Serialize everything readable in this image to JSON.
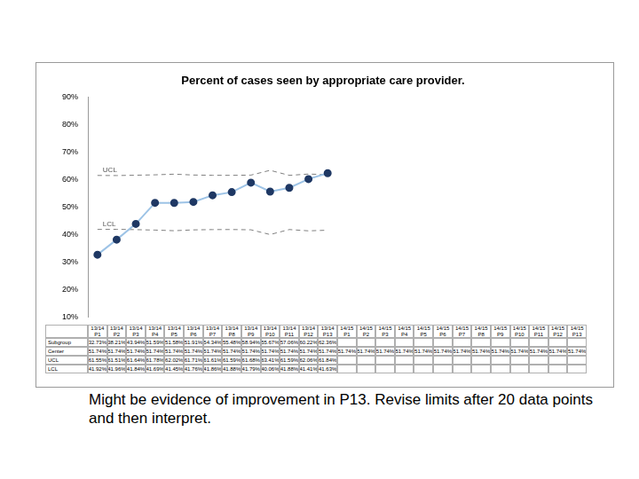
{
  "chart_data": {
    "type": "line",
    "title": "Percent of cases seen by appropriate care provider.",
    "annotations": [
      "Might be evidence of improvement in P13. Revise limits after 20 data points and then interpret."
    ],
    "categories": [
      "13/14 P1",
      "13/14 P2",
      "13/14 P3",
      "13/14 P4",
      "13/14 P5",
      "13/14 P6",
      "13/14 P7",
      "13/14 P8",
      "13/14 P9",
      "13/14 P10",
      "13/14 P11",
      "13/14 P12",
      "13/14 P13",
      "14/15 P1",
      "14/15 P2",
      "14/15 P3",
      "14/15 P4",
      "14/15 P5",
      "14/15 P6",
      "14/15 P7",
      "14/15 P8",
      "14/15 P9",
      "14/15 P10",
      "14/15 P11",
      "14/15 P12",
      "14/15 P13"
    ],
    "series": [
      {
        "name": "Subgroup",
        "color": "#9dc3e6",
        "marker": "circle",
        "line_style": "solid",
        "values": [
          32.73,
          38.21,
          43.94,
          51.59,
          51.58,
          51.91,
          54.34,
          55.48,
          58.94,
          55.67,
          57.06,
          60.22,
          62.36,
          null,
          null,
          null,
          null,
          null,
          null,
          null,
          null,
          null,
          null,
          null,
          null,
          null
        ],
        "value_labels": [
          "32.73%",
          "38.21%",
          "43.94%",
          "51.59%",
          "51.58%",
          "51.91%",
          "54.34%",
          "55.48%",
          "58.94%",
          "55.67%",
          "57.06%",
          "60.22%",
          "62.36%",
          null,
          null,
          null,
          null,
          null,
          null,
          null,
          null,
          null,
          null,
          null,
          null,
          null
        ]
      },
      {
        "name": "Center",
        "color": "#7f7f7f",
        "marker": "none",
        "line_style": "none",
        "values": [
          51.74,
          51.74,
          51.74,
          51.74,
          51.74,
          51.74,
          51.74,
          51.74,
          51.74,
          51.74,
          51.74,
          51.74,
          51.74,
          51.74,
          51.74,
          51.74,
          51.74,
          51.74,
          51.74,
          51.74,
          51.74,
          51.74,
          51.74,
          51.74,
          51.74,
          51.74
        ],
        "value_labels": [
          "51.74%",
          "51.74%",
          "51.74%",
          "51.74%",
          "51.74%",
          "51.74%",
          "51.74%",
          "51.74%",
          "51.74%",
          "51.74%",
          "51.74%",
          "51.74%",
          "51.74%",
          "51.74%",
          "51.74%",
          "51.74%",
          "51.74%",
          "51.74%",
          "51.74%",
          "51.74%",
          "51.74%",
          "51.74%",
          "51.74%",
          "51.74%",
          "51.74%",
          "51.74%"
        ]
      },
      {
        "name": "UCL",
        "color": "#7f7f7f",
        "marker": "none",
        "line_style": "dashed",
        "values": [
          61.55,
          61.51,
          61.64,
          61.78,
          62.02,
          61.71,
          61.61,
          61.59,
          61.68,
          63.41,
          61.59,
          62.06,
          61.84,
          null,
          null,
          null,
          null,
          null,
          null,
          null,
          null,
          null,
          null,
          null,
          null,
          null
        ],
        "value_labels": [
          "61.55%",
          "61.51%",
          "61.64%",
          "61.78%",
          "62.02%",
          "61.71%",
          "61.61%",
          "61.59%",
          "61.68%",
          "63.41%",
          "61.59%",
          "62.06%",
          "61.84%",
          null,
          null,
          null,
          null,
          null,
          null,
          null,
          null,
          null,
          null,
          null,
          null,
          null
        ]
      },
      {
        "name": "LCL",
        "color": "#7f7f7f",
        "marker": "none",
        "line_style": "dashed",
        "values": [
          41.92,
          41.96,
          41.84,
          41.69,
          41.45,
          41.76,
          41.86,
          41.88,
          41.79,
          40.06,
          41.88,
          41.41,
          41.63,
          null,
          null,
          null,
          null,
          null,
          null,
          null,
          null,
          null,
          null,
          null,
          null,
          null
        ],
        "value_labels": [
          "41.92%",
          "41.96%",
          "41.84%",
          "41.69%",
          "41.45%",
          "41.76%",
          "41.86%",
          "41.88%",
          "41.79%",
          "40.06%",
          "41.88%",
          "41.41%",
          "41.63%",
          null,
          null,
          null,
          null,
          null,
          null,
          null,
          null,
          null,
          null,
          null,
          null,
          null
        ]
      }
    ],
    "ylim": [
      10,
      90
    ],
    "yticks": [
      {
        "value": 10,
        "label": "10%"
      },
      {
        "value": 20,
        "label": "20%"
      },
      {
        "value": 30,
        "label": "30%"
      },
      {
        "value": 40,
        "label": "40%"
      },
      {
        "value": 50,
        "label": "50%"
      },
      {
        "value": 60,
        "label": "60%"
      },
      {
        "value": 70,
        "label": "70%"
      },
      {
        "value": 80,
        "label": "80%"
      },
      {
        "value": 90,
        "label": "90%"
      }
    ],
    "grid": false,
    "tick_labels": "y"
  }
}
